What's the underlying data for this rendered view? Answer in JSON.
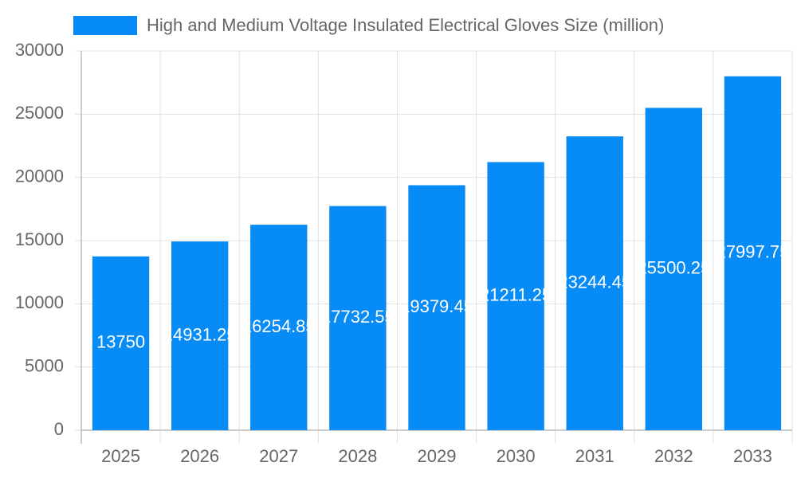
{
  "chart_data": {
    "type": "bar",
    "series": [
      {
        "name": "High and Medium Voltage Insulated Electrical Gloves Size (million)",
        "color": "#078bf6",
        "values": [
          13750,
          14931.25,
          16254.85,
          17732.55,
          19379.45,
          21211.25,
          23244.45,
          25500.25,
          27997.75
        ]
      }
    ],
    "categories": [
      "2025",
      "2026",
      "2027",
      "2028",
      "2029",
      "2030",
      "2031",
      "2032",
      "2033"
    ],
    "ylim": [
      0,
      30000
    ],
    "yticks": [
      0,
      5000,
      10000,
      15000,
      20000,
      25000,
      30000
    ],
    "grid": true
  }
}
